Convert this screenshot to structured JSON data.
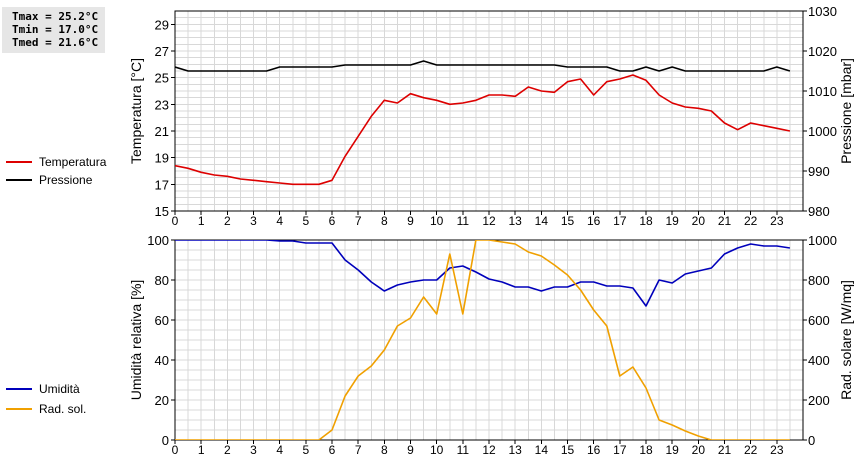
{
  "stats": {
    "tmax": "Tmax = 25.2°C",
    "tmin": "Tmin = 17.0°C",
    "tmed": "Tmed = 21.6°C"
  },
  "legend_top": [
    {
      "label": "Temperatura",
      "color": "#dd0000"
    },
    {
      "label": "Pressione",
      "color": "#000000"
    }
  ],
  "legend_bottom": [
    {
      "label": "Umidità",
      "color": "#0000bb"
    },
    {
      "label": "Rad. sol.",
      "color": "#f0a000"
    }
  ],
  "chart_data": [
    {
      "type": "line",
      "xlim": [
        0,
        24
      ],
      "x_ticks": [
        "0",
        "1",
        "2",
        "3",
        "4",
        "5",
        "6",
        "7",
        "8",
        "9",
        "10",
        "11",
        "12",
        "13",
        "14",
        "15",
        "16",
        "17",
        "18",
        "19",
        "20",
        "21",
        "22",
        "23"
      ],
      "ylabel": "Temperatura [°C]",
      "ylim": [
        15,
        30
      ],
      "y_ticks": [
        "15",
        "17",
        "19",
        "21",
        "23",
        "25",
        "27",
        "29"
      ],
      "y2label": "Pressione [mbar]",
      "y2lim": [
        980,
        1030
      ],
      "y2_ticks": [
        "980",
        "990",
        "1000",
        "1010",
        "1020",
        "1030"
      ],
      "grid": true,
      "series": [
        {
          "name": "Temperatura",
          "axis": "left",
          "color": "#dd0000",
          "x": [
            0,
            0.5,
            1,
            1.5,
            2,
            2.5,
            3,
            3.5,
            4,
            4.5,
            5,
            5.5,
            6,
            6.5,
            7,
            7.5,
            8,
            8.5,
            9,
            9.5,
            10,
            10.5,
            11,
            11.5,
            12,
            12.5,
            13,
            13.5,
            14,
            14.5,
            15,
            15.5,
            16,
            16.5,
            17,
            17.5,
            18,
            18.5,
            19,
            19.5,
            20,
            20.5,
            21,
            21.5,
            22,
            22.5,
            23,
            23.5
          ],
          "values": [
            18.4,
            18.2,
            17.9,
            17.7,
            17.6,
            17.4,
            17.3,
            17.2,
            17.1,
            17.0,
            17.0,
            17.0,
            17.3,
            19.1,
            20.6,
            22.1,
            23.3,
            23.1,
            23.8,
            23.5,
            23.3,
            23.0,
            23.1,
            23.3,
            23.7,
            23.7,
            23.6,
            24.3,
            24.0,
            23.9,
            24.7,
            24.9,
            23.7,
            24.7,
            24.9,
            25.2,
            24.8,
            23.7,
            23.1,
            22.8,
            22.7,
            22.5,
            21.6,
            21.1,
            21.6,
            21.4,
            21.2,
            21.0
          ]
        },
        {
          "name": "Pressione",
          "axis": "right",
          "color": "#000000",
          "x": [
            0,
            0.5,
            1,
            1.5,
            2,
            2.5,
            3,
            3.5,
            4,
            4.5,
            5,
            5.5,
            6,
            6.5,
            7,
            7.5,
            8,
            8.5,
            9,
            9.5,
            10,
            10.5,
            11,
            11.5,
            12,
            12.5,
            13,
            13.5,
            14,
            14.5,
            15,
            15.5,
            16,
            16.5,
            17,
            17.5,
            18,
            18.5,
            19,
            19.5,
            20,
            20.5,
            21,
            21.5,
            22,
            22.5,
            23,
            23.5
          ],
          "values": [
            1016,
            1015,
            1015,
            1015,
            1015,
            1015,
            1015,
            1015,
            1016,
            1016,
            1016,
            1016,
            1016,
            1016.5,
            1016.5,
            1016.5,
            1016.5,
            1016.5,
            1016.5,
            1017.5,
            1016.5,
            1016.5,
            1016.5,
            1016.5,
            1016.5,
            1016.5,
            1016.5,
            1016.5,
            1016.5,
            1016.5,
            1016,
            1016,
            1016,
            1016,
            1015,
            1015,
            1016,
            1015,
            1016,
            1015,
            1015,
            1015,
            1015,
            1015,
            1015,
            1015,
            1016,
            1015
          ]
        }
      ]
    },
    {
      "type": "line",
      "xlim": [
        0,
        24
      ],
      "x_ticks": [
        "0",
        "1",
        "2",
        "3",
        "4",
        "5",
        "6",
        "7",
        "8",
        "9",
        "10",
        "11",
        "12",
        "13",
        "14",
        "15",
        "16",
        "17",
        "18",
        "19",
        "20",
        "21",
        "22",
        "23"
      ],
      "ylabel": "Umidità relativa [%]",
      "ylim": [
        0,
        100
      ],
      "y_ticks": [
        "0",
        "20",
        "40",
        "60",
        "80",
        "100"
      ],
      "y2label": "Rad. solare [W/mq]",
      "y2lim": [
        0,
        1000
      ],
      "y2_ticks": [
        "0",
        "200",
        "400",
        "600",
        "800",
        "1000"
      ],
      "grid": true,
      "series": [
        {
          "name": "Umidità",
          "axis": "left",
          "color": "#0000bb",
          "x": [
            0,
            0.5,
            1,
            1.5,
            2,
            2.5,
            3,
            3.5,
            4,
            4.5,
            5,
            5.5,
            6,
            6.5,
            7,
            7.5,
            8,
            8.5,
            9,
            9.5,
            10,
            10.5,
            11,
            11.5,
            12,
            12.5,
            13,
            13.5,
            14,
            14.5,
            15,
            15.5,
            16,
            16.5,
            17,
            17.5,
            18,
            18.5,
            19,
            19.5,
            20,
            20.5,
            21,
            21.5,
            22,
            22.5,
            23,
            23.5
          ],
          "values": [
            100,
            100,
            100,
            100,
            100,
            100,
            100,
            100,
            99.5,
            99.5,
            98.5,
            98.5,
            98.5,
            90,
            85,
            79,
            74.5,
            77.5,
            79,
            80,
            80,
            86,
            87,
            84,
            80.5,
            79,
            76.5,
            76.5,
            74.5,
            76.5,
            76.5,
            79,
            79,
            77,
            77,
            76,
            67,
            80,
            78.5,
            83,
            84.5,
            86,
            93,
            96,
            98,
            97,
            97,
            96
          ]
        },
        {
          "name": "Rad. sol.",
          "axis": "right",
          "color": "#f0a000",
          "x": [
            0,
            0.5,
            1,
            1.5,
            2,
            2.5,
            3,
            3.5,
            4,
            4.5,
            5,
            5.5,
            6,
            6.5,
            7,
            7.5,
            8,
            8.5,
            9,
            9.5,
            10,
            10.5,
            11,
            11.5,
            12,
            12.5,
            13,
            13.5,
            14,
            14.5,
            15,
            15.5,
            16,
            16.5,
            17,
            17.5,
            18,
            18.5,
            19,
            19.5,
            20,
            20.5,
            21,
            21.5,
            22,
            22.5,
            23,
            23.5
          ],
          "values": [
            0,
            0,
            0,
            0,
            0,
            0,
            0,
            0,
            0,
            0,
            0,
            0,
            50,
            220,
            320,
            370,
            450,
            570,
            610,
            715,
            630,
            930,
            630,
            1000,
            1000,
            990,
            980,
            940,
            920,
            875,
            825,
            750,
            650,
            570,
            320,
            365,
            260,
            100,
            75,
            45,
            20,
            0,
            0,
            0,
            0,
            0,
            0,
            0
          ]
        }
      ]
    }
  ]
}
